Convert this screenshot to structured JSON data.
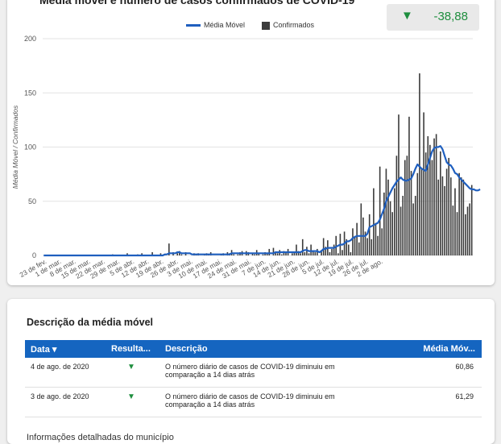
{
  "chart_card": {
    "title": "Média móvel e número de casos confirmados de COVID-19",
    "kpi": {
      "arrow": "▼",
      "value": "-38,88",
      "color": "#1e8e3e"
    },
    "legend": {
      "line_label": "Média Móvel",
      "bar_label": "Confirmados"
    }
  },
  "chart_data": {
    "type": "bar",
    "ylabel": "Média Móvel / Confirmados",
    "ylim": [
      0,
      200
    ],
    "yticks": [
      0,
      50,
      100,
      150,
      200
    ],
    "xticks": [
      "23 de fev.",
      "1 de mar.",
      "8 de mar.",
      "15 de mar.",
      "22 de mar.",
      "29 de mar.",
      "5 de abr.",
      "12 de abr.",
      "19 de abr.",
      "26 de abr.",
      "3 de mai.",
      "10 de mai.",
      "17 de mai.",
      "24 de mai.",
      "31 de mai.",
      "7 de jun.",
      "14 de jun.",
      "21 de jun.",
      "28 de jun.",
      "5 de jul.",
      "12 de jul.",
      "19 de jul.",
      "26 de jul.",
      "2 de ago."
    ],
    "series": [
      {
        "name": "Confirmados",
        "kind": "bar",
        "color": "#3b3b3b",
        "values": [
          0,
          0,
          0,
          0,
          0,
          0,
          0,
          0,
          0,
          0,
          0,
          0,
          0,
          0,
          0,
          0,
          0,
          0,
          0,
          0,
          0,
          0,
          0,
          0,
          0,
          0,
          0,
          0,
          0,
          0,
          0,
          0,
          0,
          1,
          0,
          0,
          0,
          0,
          0,
          0,
          2,
          0,
          0,
          0,
          0,
          1,
          0,
          2,
          0,
          0,
          0,
          0,
          3,
          0,
          0,
          0,
          2,
          0,
          1,
          0,
          11,
          0,
          3,
          0,
          2,
          4,
          1,
          0,
          3,
          0,
          0,
          0,
          2,
          1,
          2,
          0,
          0,
          1,
          2,
          1,
          3,
          0,
          0,
          0,
          0,
          1,
          2,
          0,
          3,
          2,
          5,
          1,
          0,
          1,
          3,
          4,
          0,
          4,
          3,
          0,
          2,
          1,
          5,
          2,
          0,
          1,
          3,
          2,
          6,
          0,
          7,
          3,
          2,
          5,
          1,
          4,
          3,
          6,
          0,
          2,
          3,
          10,
          4,
          2,
          15,
          3,
          8,
          2,
          10,
          4,
          3,
          6,
          0,
          5,
          16,
          8,
          14,
          3,
          6,
          10,
          18,
          2,
          20,
          5,
          22,
          15,
          10,
          3,
          25,
          18,
          30,
          12,
          48,
          35,
          22,
          16,
          38,
          15,
          62,
          30,
          18,
          82,
          25,
          58,
          80,
          70,
          50,
          40,
          62,
          92,
          130,
          45,
          55,
          88,
          92,
          128,
          78,
          48,
          55,
          76,
          168,
          80,
          132,
          95,
          110,
          102,
          88,
          108,
          112,
          70,
          96,
          73,
          64,
          80,
          90,
          72,
          46,
          62,
          40,
          76,
          72,
          70,
          38,
          45,
          48,
          65
        ]
      },
      {
        "name": "Média Móvel",
        "kind": "line",
        "color": "#1f5fbf",
        "values": [
          0,
          0,
          0,
          0,
          0,
          0,
          0,
          0,
          0,
          0,
          0,
          0,
          0,
          0,
          0,
          0,
          0,
          0,
          0,
          0,
          0,
          0,
          0,
          0,
          0,
          0,
          0,
          0,
          0,
          0,
          0,
          0,
          0,
          0,
          0,
          0,
          0,
          0,
          0,
          0,
          0,
          0,
          0,
          0,
          0,
          0,
          0,
          0,
          0,
          0,
          0,
          0,
          0,
          0,
          0,
          0,
          0,
          0,
          1,
          1,
          2,
          2,
          2,
          2,
          3,
          3,
          2,
          2,
          2,
          2,
          2,
          1,
          1,
          1,
          1,
          1,
          1,
          1,
          1,
          1,
          1,
          1,
          1,
          1,
          1,
          1,
          1,
          1,
          1,
          1,
          2,
          2,
          2,
          2,
          2,
          2,
          2,
          2,
          2,
          2,
          2,
          2,
          2,
          2,
          2,
          2,
          2,
          2,
          2,
          2,
          2,
          3,
          3,
          3,
          3,
          3,
          3,
          3,
          3,
          3,
          3,
          3,
          3,
          3,
          4,
          5,
          5,
          4,
          4,
          4,
          4,
          4,
          3,
          4,
          6,
          6,
          7,
          7,
          7,
          7,
          8,
          9,
          10,
          10,
          11,
          13,
          13,
          14,
          16,
          17,
          18,
          18,
          18,
          18,
          18,
          20,
          26,
          27,
          28,
          29,
          30,
          33,
          38,
          43,
          50,
          54,
          58,
          62,
          65,
          68,
          70,
          72,
          70,
          69,
          69,
          70,
          71,
          75,
          80,
          84,
          82,
          80,
          79,
          78,
          84,
          90,
          96,
          99,
          100,
          100,
          101,
          98,
          92,
          86,
          84,
          83,
          80,
          76,
          75,
          72,
          70,
          68,
          66,
          64,
          62,
          61,
          61,
          60,
          60,
          61
        ]
      }
    ]
  },
  "table_card": {
    "title": "Descrição da média móvel",
    "headers": {
      "date": "Data ▾",
      "result": "Resulta...",
      "description": "Descrição",
      "avg": "Média Móv..."
    },
    "rows": [
      {
        "date": "4 de ago. de 2020",
        "result": "▼",
        "description": "O número diário de casos de COVID-19 diminuiu em comparação a 14 dias atrás",
        "avg": "60,86"
      },
      {
        "date": "3 de ago. de 2020",
        "result": "▼",
        "description": "O número diário de casos de COVID-19 diminuiu em comparação a 14 dias atrás",
        "avg": "61,29"
      }
    ],
    "below_text": "Informações detalhadas do município"
  }
}
